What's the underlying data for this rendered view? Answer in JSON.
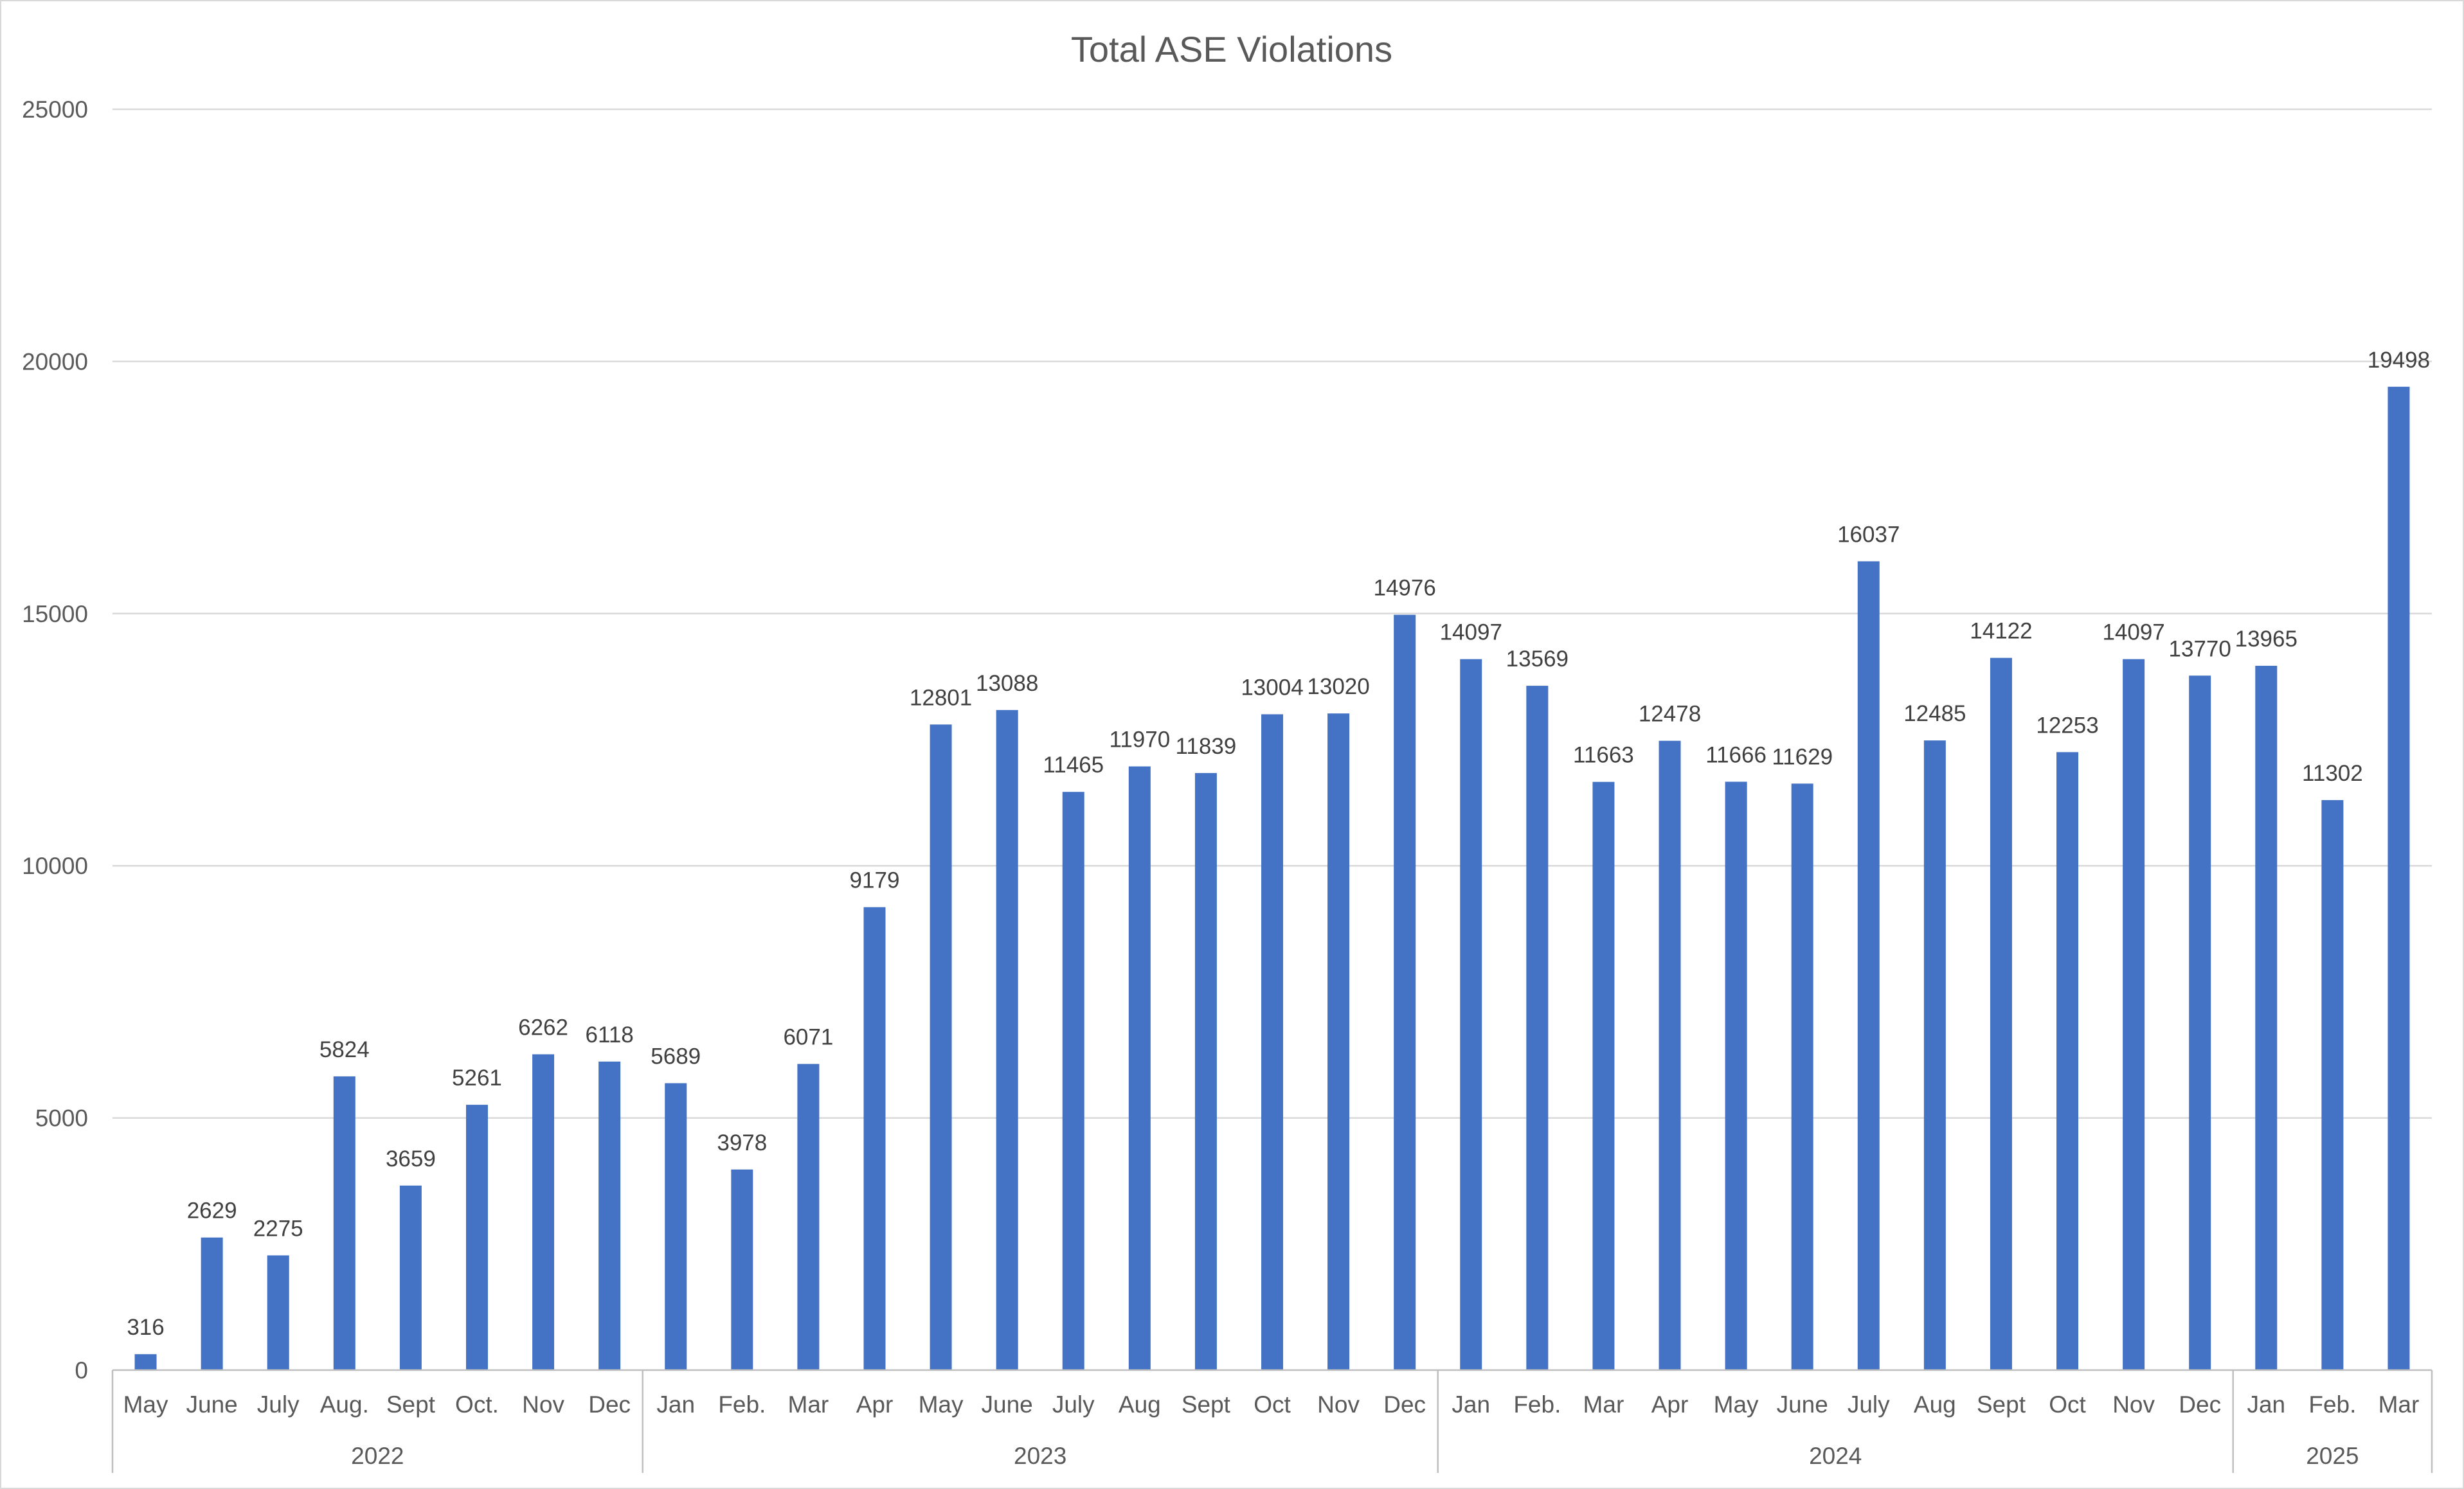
{
  "chart_data": {
    "type": "bar",
    "title": "Total ASE Violations",
    "xlabel": "",
    "ylabel": "",
    "ylim": [
      0,
      25000
    ],
    "yticks": [
      0,
      5000,
      10000,
      15000,
      20000,
      25000
    ],
    "grid": true,
    "legend": "none",
    "bar_color": "#4472C4",
    "groups": [
      {
        "label": "2022",
        "categories": [
          "May",
          "June",
          "July",
          "Aug.",
          "Sept",
          "Oct.",
          "Nov",
          "Dec"
        ],
        "values": [
          316,
          2629,
          2275,
          5824,
          3659,
          5261,
          6262,
          6118
        ]
      },
      {
        "label": "2023",
        "categories": [
          "Jan",
          "Feb.",
          "Mar",
          "Apr",
          "May",
          "June",
          "July",
          "Aug",
          "Sept",
          "Oct",
          "Nov",
          "Dec"
        ],
        "values": [
          5689,
          3978,
          6071,
          9179,
          12801,
          13088,
          11465,
          11970,
          11839,
          13004,
          13020,
          14976
        ]
      },
      {
        "label": "2024",
        "categories": [
          "Jan",
          "Feb.",
          "Mar",
          "Apr",
          "May",
          "June",
          "July",
          "Aug",
          "Sept",
          "Oct",
          "Nov",
          "Dec"
        ],
        "values": [
          14097,
          13569,
          11663,
          12478,
          11666,
          11629,
          16037,
          12485,
          14122,
          12253,
          14097,
          13770
        ]
      },
      {
        "label": "2025",
        "categories": [
          "Jan",
          "Feb.",
          "Mar"
        ],
        "values": [
          13965,
          11302,
          19498
        ]
      }
    ]
  }
}
